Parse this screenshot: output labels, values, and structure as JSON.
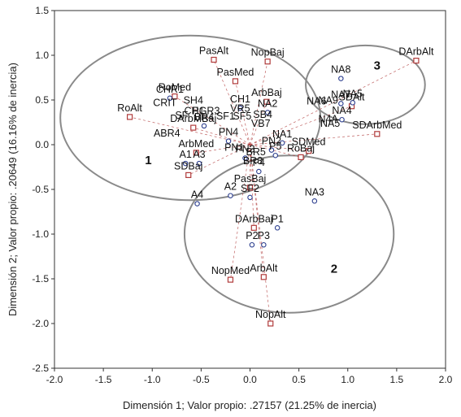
{
  "chart_data": {
    "type": "scatter",
    "xlabel": "Dimensión 1; Valor propio: .27157 (21.25% de inercia)",
    "ylabel": "Dimensión 2; Valor propio: .20649 (16.16% de inercia)",
    "xlim": [
      -2.0,
      2.0
    ],
    "ylim": [
      -2.5,
      1.5
    ],
    "xticks": [
      -2.0,
      -1.5,
      -1.0,
      -0.5,
      0.0,
      0.5,
      1.0,
      1.5,
      2.0
    ],
    "yticks": [
      -2.5,
      -2.0,
      -1.5,
      -1.0,
      -0.5,
      0.0,
      0.5,
      1.0,
      1.5
    ],
    "xtick_labels": [
      "-2.0",
      "-1.5",
      "-1.0",
      "-0.5",
      "0.0",
      "0.5",
      "1.0",
      "1.5",
      "2.0"
    ],
    "ytick_labels": [
      "-2.5",
      "-2.0",
      "-1.5",
      "-1.0",
      "-0.5",
      "0.0",
      "0.5",
      "1.0",
      "1.5"
    ],
    "grid": false,
    "series": [
      {
        "marker": "square",
        "color": "#b03a3a",
        "points": [
          {
            "label": "PasAlt",
            "x": -0.37,
            "y": 0.95
          },
          {
            "label": "NopBaj",
            "x": 0.18,
            "y": 0.93
          },
          {
            "label": "PasMed",
            "x": -0.15,
            "y": 0.71
          },
          {
            "label": "ArbBaj",
            "x": 0.17,
            "y": 0.48
          },
          {
            "label": "RoMed",
            "x": -0.77,
            "y": 0.54
          },
          {
            "label": "RoAlt",
            "x": -1.23,
            "y": 0.31
          },
          {
            "label": "DArbMBaj",
            "x": -0.58,
            "y": 0.19
          },
          {
            "label": "ArbMed",
            "x": -0.55,
            "y": -0.09
          },
          {
            "label": "SDBaj",
            "x": -0.63,
            "y": -0.34
          },
          {
            "label": "DArbAlt",
            "x": 1.7,
            "y": 0.94
          },
          {
            "label": "SDAlt",
            "x": 1.04,
            "y": 0.43
          },
          {
            "label": "SDArbMed",
            "x": 1.3,
            "y": 0.12
          },
          {
            "label": "SDMed",
            "x": 0.6,
            "y": -0.07
          },
          {
            "label": "RoBaj",
            "x": 0.52,
            "y": -0.14
          },
          {
            "label": "PasBaj",
            "x": 0.0,
            "y": -0.48
          },
          {
            "label": "DArbBaj",
            "x": 0.04,
            "y": -0.93
          },
          {
            "label": "ArbAlt",
            "x": 0.14,
            "y": -1.48
          },
          {
            "label": "NopMed",
            "x": -0.2,
            "y": -1.51
          },
          {
            "label": "NopAlt",
            "x": 0.21,
            "y": -2.0
          }
        ]
      },
      {
        "marker": "circle",
        "color": "#2d3f8f",
        "points": [
          {
            "label": "CHR1",
            "x": -0.82,
            "y": 0.52
          },
          {
            "label": "CH1",
            "x": -0.1,
            "y": 0.41
          },
          {
            "label": "NA2",
            "x": 0.18,
            "y": 0.36
          },
          {
            "label": "PN4",
            "x": -0.22,
            "y": 0.04
          },
          {
            "label": "NA1",
            "x": 0.33,
            "y": 0.02
          },
          {
            "label": "PN2",
            "x": 0.22,
            "y": -0.06
          },
          {
            "label": "PN3",
            "x": -0.05,
            "y": -0.15
          },
          {
            "label": "P5",
            "x": 0.26,
            "y": -0.12
          },
          {
            "label": "BR4",
            "x": -0.47,
            "y": 0.21
          },
          {
            "label": "A1",
            "x": -0.66,
            "y": -0.21
          },
          {
            "label": "A3",
            "x": -0.52,
            "y": -0.21
          },
          {
            "label": "P4",
            "x": 0.09,
            "y": -0.3
          },
          {
            "label": "A2",
            "x": -0.2,
            "y": -0.57
          },
          {
            "label": "SF2",
            "x": 0.0,
            "y": -0.59
          },
          {
            "label": "A4",
            "x": -0.54,
            "y": -0.66
          },
          {
            "label": "NA3",
            "x": 0.66,
            "y": -0.63
          },
          {
            "label": "NA8",
            "x": 0.93,
            "y": 0.74
          },
          {
            "label": "NA5",
            "x": 1.05,
            "y": 0.47
          },
          {
            "label": "NA4",
            "x": 0.94,
            "y": 0.28
          },
          {
            "label": "NA7",
            "x": 0.93,
            "y": 0.46
          },
          {
            "label": "P1",
            "x": 0.28,
            "y": -0.93
          },
          {
            "label": "P2",
            "x": 0.02,
            "y": -1.12
          },
          {
            "label": "P3",
            "x": 0.14,
            "y": -1.12
          }
        ]
      }
    ],
    "dense_labels": [
      {
        "text": "CRIT",
        "x": -0.87,
        "y": 0.43
      },
      {
        "text": "SH4",
        "x": -0.58,
        "y": 0.46
      },
      {
        "text": "CH1",
        "x": -0.57,
        "y": 0.34
      },
      {
        "text": "SF",
        "x": -0.7,
        "y": 0.29
      },
      {
        "text": "PGR3",
        "x": -0.45,
        "y": 0.34
      },
      {
        "text": "VR5",
        "x": -0.1,
        "y": 0.37
      },
      {
        "text": "SF1",
        "x": -0.25,
        "y": 0.28
      },
      {
        "text": "SF5",
        "x": -0.08,
        "y": 0.28
      },
      {
        "text": "SB4",
        "x": 0.13,
        "y": 0.3
      },
      {
        "text": "VB7",
        "x": 0.11,
        "y": 0.2
      },
      {
        "text": "ABR4",
        "x": -0.85,
        "y": 0.09
      },
      {
        "text": "PN1",
        "x": -0.16,
        "y": -0.07
      },
      {
        "text": "BR3",
        "x": 0.03,
        "y": -0.22
      },
      {
        "text": "BR5",
        "x": 0.06,
        "y": -0.12
      },
      {
        "text": "NA6",
        "x": 0.68,
        "y": 0.45
      },
      {
        "text": "NA9",
        "x": 0.8,
        "y": 0.46
      },
      {
        "text": "N4A",
        "x": 0.8,
        "y": 0.25
      },
      {
        "text": "NA5",
        "x": 0.82,
        "y": 0.2
      }
    ],
    "ellipses": [
      {
        "cx": -0.61,
        "cy": 0.3,
        "rx": 1.33,
        "ry": 0.92
      },
      {
        "cx": 0.4,
        "cy": -1.0,
        "rx": 1.07,
        "ry": 0.88
      },
      {
        "cx": 1.18,
        "cy": 0.67,
        "rx": 0.61,
        "ry": 0.44
      }
    ],
    "cluster_labels": [
      {
        "text": "1",
        "x": -1.04,
        "y": -0.22
      },
      {
        "text": "2",
        "x": 0.86,
        "y": -1.43
      },
      {
        "text": "3",
        "x": 1.3,
        "y": 0.84
      }
    ]
  }
}
